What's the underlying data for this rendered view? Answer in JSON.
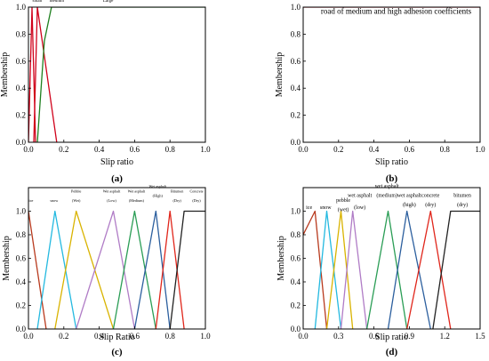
{
  "chart_data": [
    {
      "panel": "(a)",
      "type": "line",
      "xlabel": "Slip ratio",
      "ylabel": "Membership",
      "xlim": [
        0.0,
        1.0
      ],
      "ylim": [
        0.0,
        1.0
      ],
      "xticks": [
        "0.0",
        "0.2",
        "0.4",
        "0.6",
        "0.8",
        "1.0"
      ],
      "yticks": [
        "0.0",
        "0.2",
        "0.4",
        "0.6",
        "0.8",
        "1.0"
      ],
      "series": [
        {
          "name": "small",
          "color": "#d0021b",
          "points": [
            [
              0.0,
              0.0
            ],
            [
              0.02,
              1.0
            ],
            [
              0.04,
              0.0
            ]
          ]
        },
        {
          "name": "medium",
          "color": "#d0021b",
          "points": [
            [
              0.03,
              0.0
            ],
            [
              0.05,
              1.0
            ],
            [
              0.16,
              0.0
            ]
          ]
        },
        {
          "name": "Large",
          "color": "#1e7f1e",
          "points": [
            [
              0.05,
              0.0
            ],
            [
              0.09,
              0.75
            ],
            [
              0.13,
              1.0
            ],
            [
              1.0,
              1.0
            ]
          ]
        }
      ],
      "annotations": [
        {
          "text": "small",
          "x": 0.05,
          "y": 1.04
        },
        {
          "text": "medium",
          "x": 0.16,
          "y": 1.04
        },
        {
          "text": "Large",
          "x": 0.45,
          "y": 1.04
        }
      ]
    },
    {
      "panel": "(b)",
      "type": "line",
      "xlabel": "Slip ratio",
      "ylabel": "Membership",
      "xlim": [
        0.0,
        1.0
      ],
      "ylim": [
        0.0,
        1.0
      ],
      "xticks": [
        "0.0",
        "0.2",
        "0.4",
        "0.6",
        "0.8",
        "1.0"
      ],
      "yticks": [
        "0.0",
        "0.2",
        "0.4",
        "0.6",
        "0.8",
        "1.0"
      ],
      "series": [
        {
          "name": "road of medium and high adhesion coefficients",
          "color": "#d0021b",
          "points": [
            [
              0.0,
              1.0
            ],
            [
              1.0,
              1.0
            ]
          ]
        }
      ],
      "annotations": [
        {
          "text": "road of medium and high adhesion coefficients",
          "x": 0.1,
          "y": 0.95
        }
      ]
    },
    {
      "panel": "(c)",
      "type": "line",
      "xlabel": "Slip Ratio",
      "ylabel": "Membership",
      "xlim": [
        0.0,
        1.0
      ],
      "ylim": [
        0.0,
        1.2
      ],
      "xticks": [
        "0.0",
        "0.2",
        "0.4",
        "0.6",
        "0.8",
        "1.0"
      ],
      "yticks": [
        "0.0",
        "0.2",
        "0.4",
        "0.6",
        "0.8",
        "1.0"
      ],
      "series": [
        {
          "name": "ice",
          "color": "#b83a1e",
          "points": [
            [
              0.0,
              1.0
            ],
            [
              0.1,
              0.0
            ]
          ]
        },
        {
          "name": "snow",
          "color": "#24b9e0",
          "points": [
            [
              0.05,
              0.0
            ],
            [
              0.15,
              1.0
            ],
            [
              0.27,
              0.0
            ]
          ]
        },
        {
          "name": "Pebble (Wet)",
          "color": "#d9b300",
          "points": [
            [
              0.15,
              0.0
            ],
            [
              0.27,
              1.0
            ],
            [
              0.48,
              0.0
            ]
          ]
        },
        {
          "name": "Wet asphalt (Low)",
          "color": "#b07cc6",
          "points": [
            [
              0.27,
              0.0
            ],
            [
              0.48,
              1.0
            ],
            [
              0.6,
              0.0
            ]
          ]
        },
        {
          "name": "Wet asphalt (Medium)",
          "color": "#2a9d55",
          "points": [
            [
              0.48,
              0.0
            ],
            [
              0.6,
              1.0
            ],
            [
              0.72,
              0.0
            ]
          ]
        },
        {
          "name": "Wet asphalt (High)",
          "color": "#2c5f9e",
          "points": [
            [
              0.6,
              0.0
            ],
            [
              0.72,
              1.0
            ],
            [
              0.8,
              0.0
            ]
          ]
        },
        {
          "name": "Bitumen (Dry)",
          "color": "#e0261b",
          "points": [
            [
              0.72,
              0.0
            ],
            [
              0.8,
              1.0
            ],
            [
              0.88,
              0.0
            ]
          ]
        },
        {
          "name": "Concrete (Dry)",
          "color": "#222222",
          "points": [
            [
              0.8,
              0.0
            ],
            [
              0.88,
              1.0
            ],
            [
              1.0,
              1.0
            ]
          ]
        }
      ],
      "annotations": [
        {
          "text": "ice",
          "x": 0.015,
          "y": 1.08
        },
        {
          "text": "snow",
          "x": 0.145,
          "y": 1.08
        },
        {
          "text": "Pebble",
          "x": 0.27,
          "y": 1.16
        },
        {
          "text": "(Wet)",
          "x": 0.27,
          "y": 1.08
        },
        {
          "text": "Wet asphalt",
          "x": 0.47,
          "y": 1.16
        },
        {
          "text": "(Low)",
          "x": 0.47,
          "y": 1.08
        },
        {
          "text": "Wet asphalt",
          "x": 0.61,
          "y": 1.16
        },
        {
          "text": "(Medium)",
          "x": 0.61,
          "y": 1.08
        },
        {
          "text": "Wet asphalt",
          "x": 0.73,
          "y": 1.2
        },
        {
          "text": "(High)",
          "x": 0.73,
          "y": 1.12
        },
        {
          "text": "Bitumen",
          "x": 0.84,
          "y": 1.16
        },
        {
          "text": "(Dry)",
          "x": 0.84,
          "y": 1.08
        },
        {
          "text": "Concrete",
          "x": 0.95,
          "y": 1.16
        },
        {
          "text": "(Dry)",
          "x": 0.95,
          "y": 1.08
        }
      ]
    },
    {
      "panel": "(d)",
      "type": "line",
      "xlabel": "Slip ratio",
      "ylabel": "Membership",
      "xlim": [
        0.0,
        1.5
      ],
      "ylim": [
        0.0,
        1.2
      ],
      "xticks": [
        "0.0",
        "0.3",
        "0.6",
        "0.9",
        "1.2",
        "1.5"
      ],
      "yticks": [
        "0.0",
        "0.2",
        "0.4",
        "0.6",
        "0.8",
        "1.0"
      ],
      "series": [
        {
          "name": "ice",
          "color": "#b83a1e",
          "points": [
            [
              0.0,
              0.8
            ],
            [
              0.1,
              1.0
            ],
            [
              0.2,
              0.0
            ]
          ]
        },
        {
          "name": "snow",
          "color": "#24b9e0",
          "points": [
            [
              0.1,
              0.0
            ],
            [
              0.2,
              1.0
            ],
            [
              0.32,
              0.0
            ]
          ]
        },
        {
          "name": "pebble (wet)",
          "color": "#d9b300",
          "points": [
            [
              0.2,
              0.0
            ],
            [
              0.32,
              1.0
            ],
            [
              0.42,
              0.0
            ]
          ]
        },
        {
          "name": "wet asphalt (low)",
          "color": "#b07cc6",
          "points": [
            [
              0.32,
              0.0
            ],
            [
              0.42,
              1.0
            ],
            [
              0.54,
              0.0
            ]
          ]
        },
        {
          "name": "wet asphalt (medium)",
          "color": "#2a9d55",
          "points": [
            [
              0.54,
              0.0
            ],
            [
              0.72,
              1.0
            ],
            [
              0.88,
              0.0
            ]
          ]
        },
        {
          "name": "wet asphalt (high)",
          "color": "#2c5f9e",
          "points": [
            [
              0.72,
              0.0
            ],
            [
              0.88,
              1.0
            ],
            [
              1.08,
              0.0
            ]
          ]
        },
        {
          "name": "concrete (dry)",
          "color": "#e0261b",
          "points": [
            [
              0.88,
              0.0
            ],
            [
              1.08,
              1.0
            ],
            [
              1.25,
              0.0
            ]
          ]
        },
        {
          "name": "bitumen (dry)",
          "color": "#222222",
          "points": [
            [
              1.1,
              0.0
            ],
            [
              1.25,
              1.0
            ],
            [
              1.5,
              1.0
            ]
          ]
        }
      ],
      "annotations": [
        {
          "text": "ice",
          "x": 0.05,
          "y": 1.02
        },
        {
          "text": "snow",
          "x": 0.19,
          "y": 1.02
        },
        {
          "text": "pebble",
          "x": 0.34,
          "y": 1.08
        },
        {
          "text": "(wet)",
          "x": 0.34,
          "y": 1.0
        },
        {
          "text": "wet asphalt",
          "x": 0.48,
          "y": 1.12
        },
        {
          "text": "(low)",
          "x": 0.48,
          "y": 1.02
        },
        {
          "text": "wet asphalt",
          "x": 0.71,
          "y": 1.2
        },
        {
          "text": "(medium)",
          "x": 0.71,
          "y": 1.12
        },
        {
          "text": "wet asphalt",
          "x": 0.9,
          "y": 1.12
        },
        {
          "text": "(high)",
          "x": 0.9,
          "y": 1.04
        },
        {
          "text": "concrete",
          "x": 1.08,
          "y": 1.12
        },
        {
          "text": "(dry)",
          "x": 1.08,
          "y": 1.04
        },
        {
          "text": "bitumen",
          "x": 1.35,
          "y": 1.12
        },
        {
          "text": "(dry)",
          "x": 1.35,
          "y": 1.04
        }
      ]
    }
  ]
}
